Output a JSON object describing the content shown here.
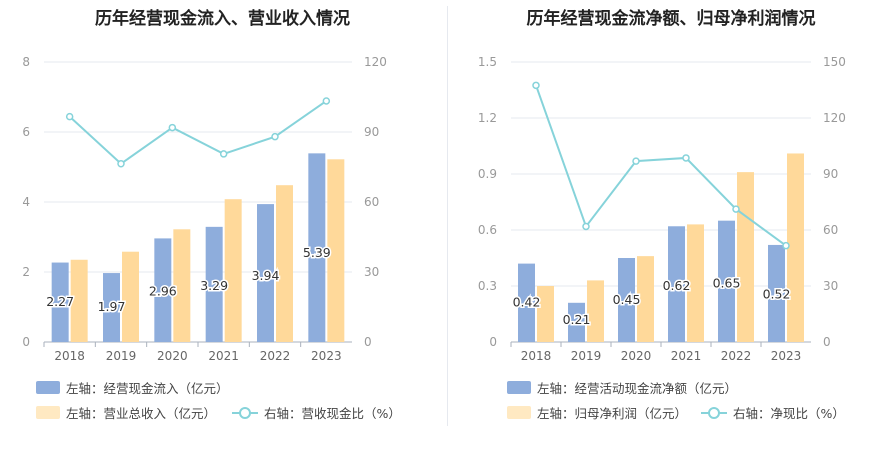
{
  "colors": {
    "bar1": "#8eaddc",
    "bar2": "#ffd99a",
    "line": "#86d3da",
    "grid": "#e6e9ef",
    "axis": "#999999",
    "label": "#333333"
  },
  "chart_data": [
    {
      "type": "bar",
      "title": "历年经营现金流入、营业收入情况",
      "categories": [
        "2018",
        "2019",
        "2020",
        "2021",
        "2022",
        "2023"
      ],
      "ylim": [
        0,
        8
      ],
      "y_ticks": [
        "0",
        "2",
        "4",
        "6",
        "8"
      ],
      "y2lim": [
        0,
        120
      ],
      "y2_ticks": [
        "0",
        "30",
        "60",
        "90",
        "120"
      ],
      "series": [
        {
          "name": "左轴：经营现金流入（亿元）",
          "kind": "bar",
          "axis": "left",
          "values": [
            2.27,
            1.97,
            2.96,
            3.29,
            3.94,
            5.39
          ],
          "labels": [
            "2.27",
            "1.97",
            "2.96",
            "3.29",
            "3.94",
            "5.39"
          ]
        },
        {
          "name": "左轴：营业总收入（亿元）",
          "kind": "bar",
          "axis": "left",
          "values": [
            2.35,
            2.58,
            3.22,
            4.08,
            4.48,
            5.22
          ]
        },
        {
          "name": "右轴：营收现金比（%）",
          "kind": "line",
          "axis": "right",
          "values": [
            96.6,
            76.4,
            91.9,
            80.6,
            88.0,
            103.3
          ]
        }
      ],
      "grid": true,
      "legend": "bottom-left"
    },
    {
      "type": "bar",
      "title": "历年经营现金流净额、归母净利润情况",
      "categories": [
        "2018",
        "2019",
        "2020",
        "2021",
        "2022",
        "2023"
      ],
      "ylim": [
        0,
        1.5
      ],
      "y_ticks": [
        "0",
        "0.3",
        "0.6",
        "0.9",
        "1.2",
        "1.5"
      ],
      "y2lim": [
        0,
        150
      ],
      "y2_ticks": [
        "0",
        "30",
        "60",
        "90",
        "120",
        "150"
      ],
      "series": [
        {
          "name": "左轴：经营活动现金流净额（亿元）",
          "kind": "bar",
          "axis": "left",
          "values": [
            0.42,
            0.21,
            0.45,
            0.62,
            0.65,
            0.52
          ],
          "labels": [
            "0.42",
            "0.21",
            "0.45",
            "0.62",
            "0.65",
            "0.52"
          ]
        },
        {
          "name": "左轴：归母净利润（亿元）",
          "kind": "bar",
          "axis": "left",
          "values": [
            0.3,
            0.33,
            0.46,
            0.63,
            0.91,
            1.01
          ]
        },
        {
          "name": "右轴：净现比（%）",
          "kind": "line",
          "axis": "right",
          "values": [
            137.5,
            61.9,
            96.9,
            98.6,
            71.2,
            51.6
          ]
        }
      ],
      "grid": true,
      "legend": "bottom-left"
    }
  ]
}
